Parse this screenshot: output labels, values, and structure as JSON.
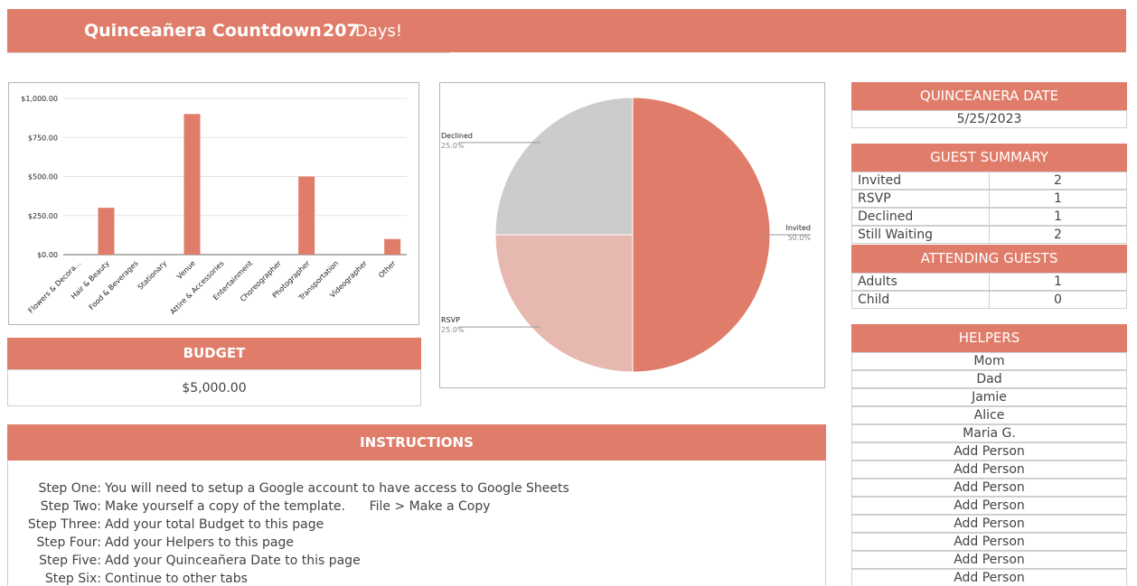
{
  "banner": {
    "title": "Quinceañera Countdown",
    "countdown_value": "207",
    "countdown_unit": "Days!"
  },
  "budget": {
    "header": "BUDGET",
    "value": "$5,000.00"
  },
  "date_panel": {
    "header": "QUINCEANERA DATE",
    "value": "5/25/2023"
  },
  "guest_summary": {
    "header": "GUEST SUMMARY",
    "rows": [
      {
        "label": "Invited",
        "value": "2"
      },
      {
        "label": "RSVP",
        "value": "1"
      },
      {
        "label": "Declined",
        "value": "1"
      },
      {
        "label": "Still Waiting",
        "value": "2"
      }
    ]
  },
  "attending": {
    "header": "ATTENDING GUESTS",
    "rows": [
      {
        "label": "Adults",
        "value": "1"
      },
      {
        "label": "Child",
        "value": "0"
      }
    ]
  },
  "helpers": {
    "header": "HELPERS",
    "items": [
      "Mom",
      "Dad",
      "Jamie",
      "Alice",
      "Maria G.",
      "Add Person",
      "Add Person",
      "Add Person",
      "Add Person",
      "Add Person",
      "Add Person",
      "Add Person",
      "Add Person"
    ]
  },
  "instructions": {
    "header": "INSTRUCTIONS",
    "steps": [
      {
        "label": "Step One:",
        "text": "You will need to setup a Google account to have access to Google Sheets"
      },
      {
        "label": "Step Two:",
        "text": "Make yourself a copy of the template.      File > Make a Copy"
      },
      {
        "label": "Step Three:",
        "text": "Add your total Budget to this page"
      },
      {
        "label": "Step Four:",
        "text": "Add your Helpers to this page"
      },
      {
        "label": "Step Five:",
        "text": "Add your Quinceañera Date to this page"
      },
      {
        "label": "Step Six:",
        "text": "Continue to other tabs"
      }
    ]
  },
  "colors": {
    "accent": "#e07d6a",
    "light_accent": "#e6b8af",
    "grey": "#cccccc"
  },
  "chart_data": [
    {
      "type": "bar",
      "categories": [
        "Flowers & Decora...",
        "Hair & Beauty",
        "Food & Beverages",
        "Stationary",
        "Venue",
        "Attire & Accessories",
        "Entertainment",
        "Choreographer",
        "Photographer",
        "Transportation",
        "Videographer",
        "Other"
      ],
      "values": [
        0,
        300,
        0,
        0,
        900,
        0,
        0,
        0,
        500,
        0,
        0,
        100
      ],
      "y_ticks": [
        "$0.00",
        "$250.00",
        "$500.00",
        "$750.00",
        "$1,000.00"
      ],
      "ylim": [
        0,
        1000
      ],
      "grid": true,
      "color": "#e07d6a"
    },
    {
      "type": "pie",
      "slices": [
        {
          "label": "Invited",
          "value": 50.0,
          "pct_label": "50.0%",
          "color": "#e07d6a"
        },
        {
          "label": "RSVP",
          "value": 25.0,
          "pct_label": "25.0%",
          "color": "#e6b8af"
        },
        {
          "label": "Declined",
          "value": 25.0,
          "pct_label": "25.0%",
          "color": "#cccccc"
        }
      ]
    }
  ]
}
